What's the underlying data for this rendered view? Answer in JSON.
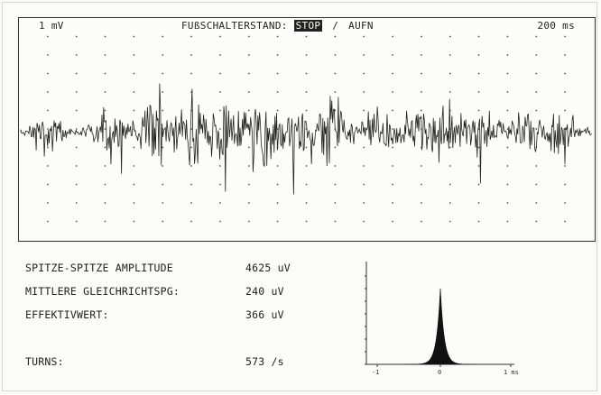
{
  "scope": {
    "scale_left": "1 mV",
    "scale_right": "200 ms",
    "switch_label": "FUßSCHALTERSTAND:",
    "switch_active": "STOP",
    "switch_separator": "/",
    "switch_other": "AUFN"
  },
  "measurements": [
    {
      "label": "SPITZE-SPITZE AMPLITUDE",
      "value": "4625 uV"
    },
    {
      "label": "MITTLERE GLEICHRICHTSPG:",
      "value": "240 uV"
    },
    {
      "label": "EFFEKTIVWERT:",
      "value": "366 uV"
    },
    {
      "label": "TURNS:",
      "value": "573 /s"
    }
  ],
  "histogram": {
    "x_ticks": [
      "-1",
      "0",
      "1 ms"
    ]
  },
  "colors": {
    "trace": "#222222",
    "background": "#fbfbf9",
    "grid_dots": "#555555"
  }
}
